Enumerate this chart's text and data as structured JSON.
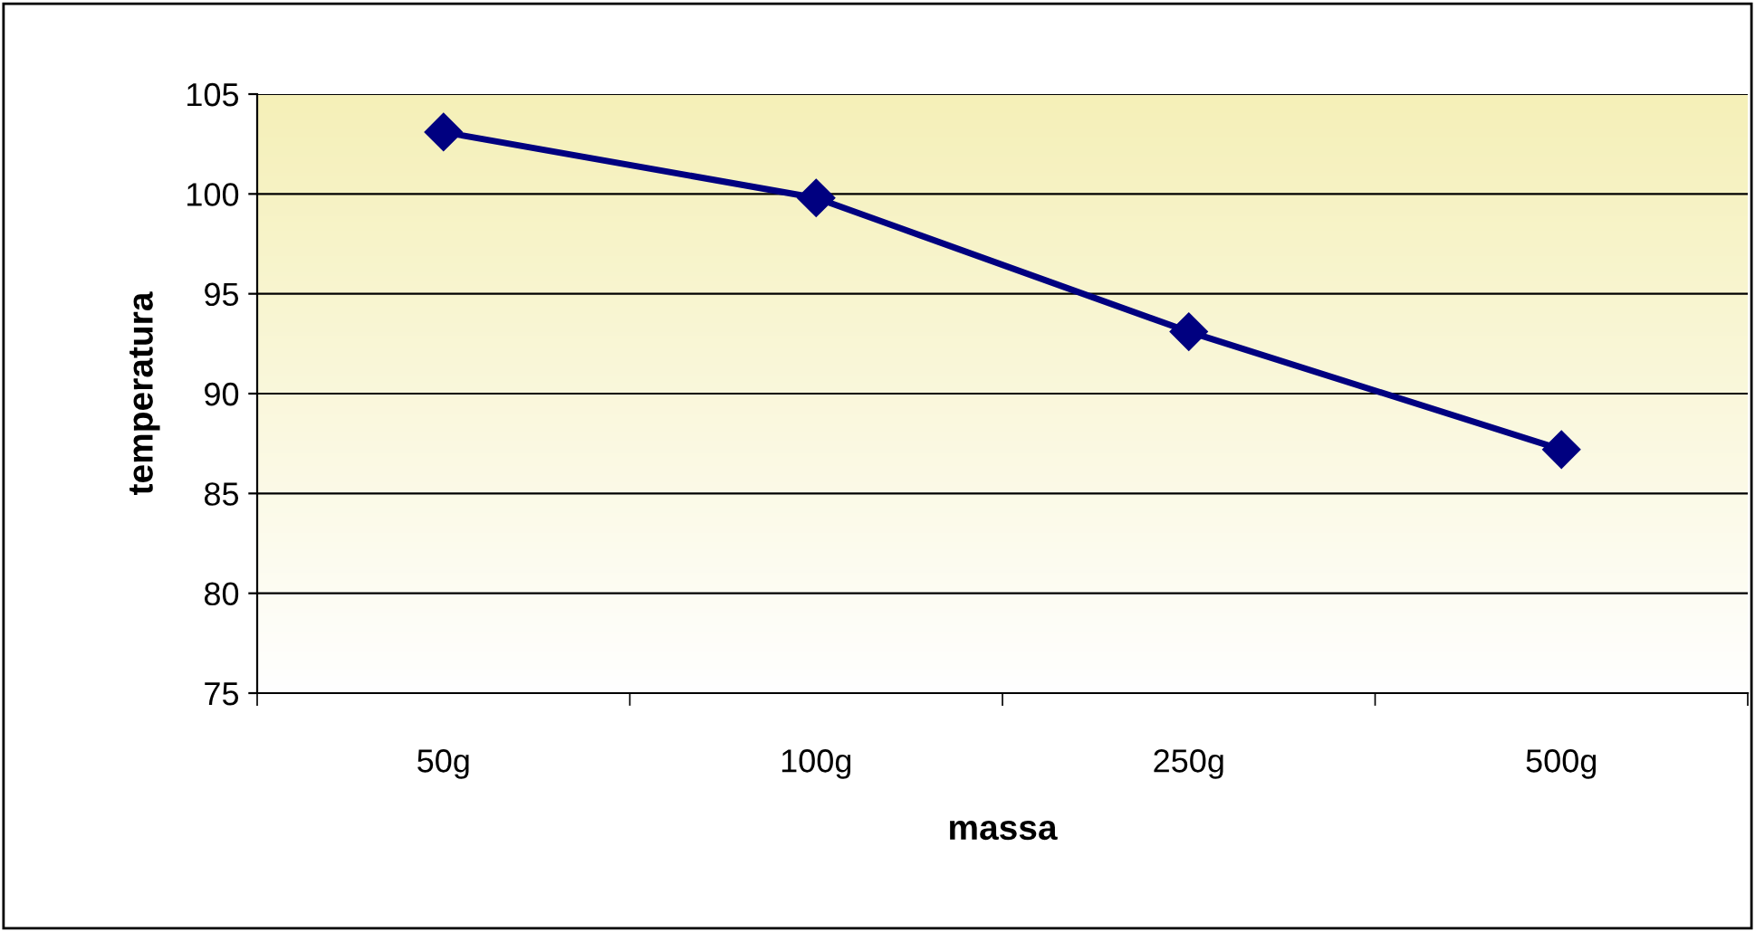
{
  "chart_data": {
    "type": "line",
    "xlabel": "massa",
    "ylabel": "temperatura",
    "categories": [
      "50g",
      "100g",
      "250g",
      "500g"
    ],
    "series": [
      {
        "color": "#000080",
        "values": [
          103.1,
          99.8,
          93.1,
          87.2
        ]
      }
    ],
    "ylim": [
      75,
      105
    ],
    "yticks": [
      75,
      80,
      85,
      90,
      95,
      100,
      105
    ],
    "grid": "y",
    "marker": "diamond",
    "line_style": "solid",
    "legend": false
  }
}
